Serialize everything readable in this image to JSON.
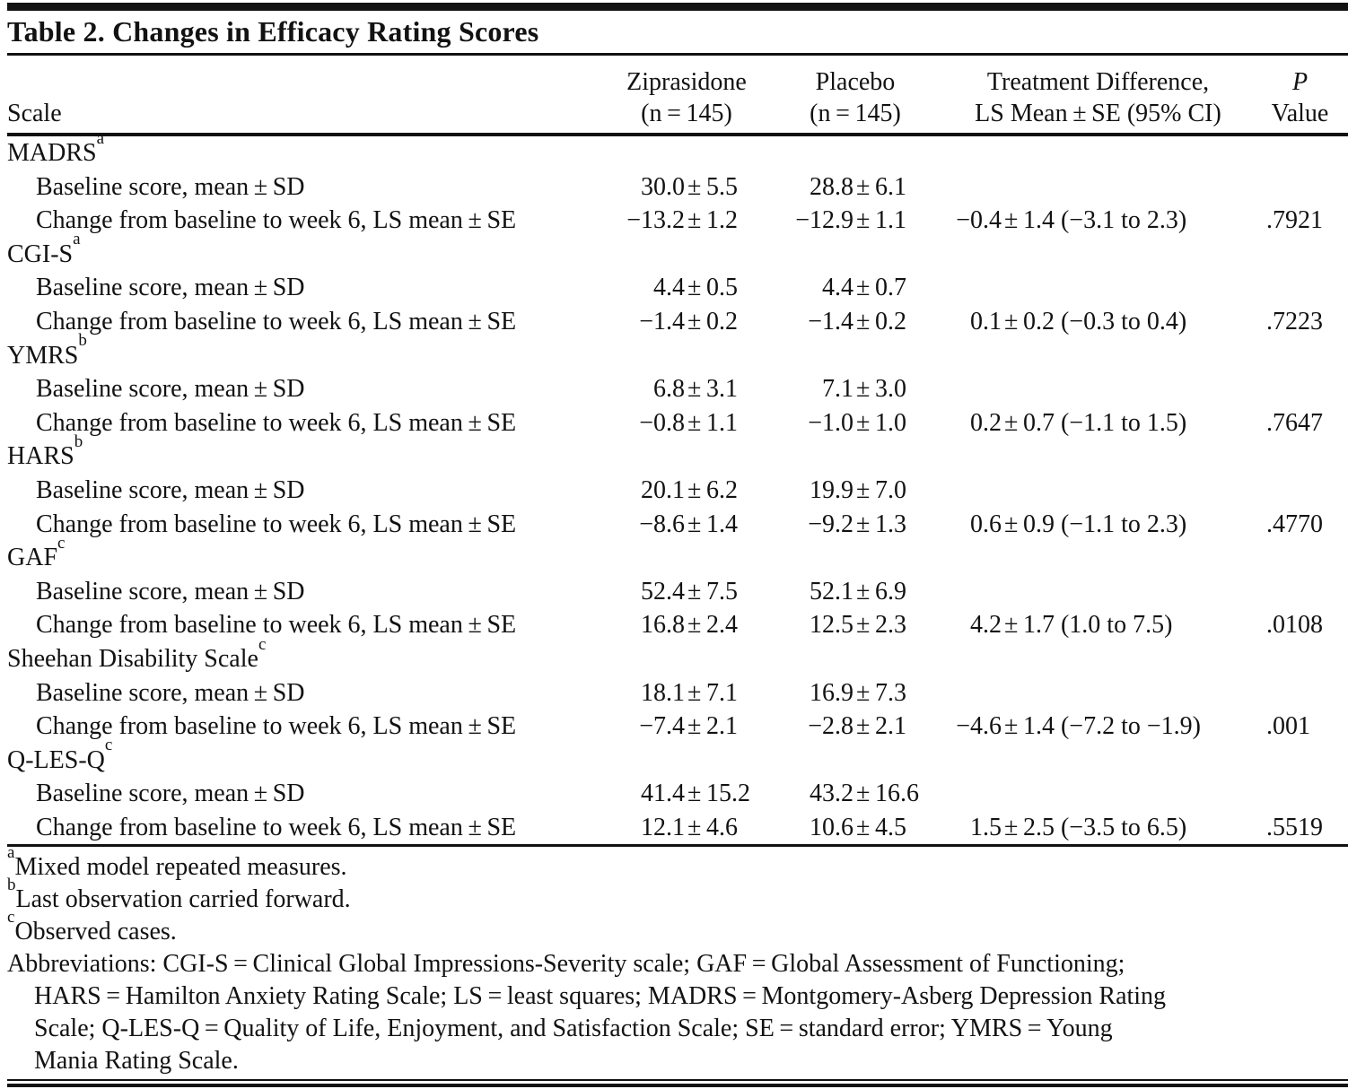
{
  "colors": {
    "ink": "#121212",
    "background": "#ffffff"
  },
  "table": {
    "title": "Table 2. Changes in Efficacy Rating Scores",
    "columns": {
      "scale": "Scale",
      "zip_line1": "Ziprasidone",
      "zip_line2": "(n = 145)",
      "pla_line1": "Placebo",
      "pla_line2": "(n = 145)",
      "diff_line1": "Treatment Difference,",
      "diff_line2": "LS Mean ± SE (95% CI)",
      "p_line1": "P",
      "p_line2": "Value"
    },
    "sections": [
      {
        "name": "MADRS",
        "sup": "a",
        "rows": [
          {
            "label": "Baseline score, mean ± SD",
            "zip_l": "30.0",
            "zip_r": "± 5.5",
            "pla_l": "28.8",
            "pla_r": "± 6.1",
            "diff_l": "",
            "diff_r": "",
            "p": ""
          },
          {
            "label": "Change from baseline to week 6, LS mean ± SE",
            "zip_l": "−13.2",
            "zip_r": "± 1.2",
            "pla_l": "−12.9",
            "pla_r": "± 1.1",
            "diff_l": "−0.4",
            "diff_r": "± 1.4 (−3.1 to 2.3)",
            "p": ".7921"
          }
        ]
      },
      {
        "name": "CGI-S",
        "sup": "a",
        "rows": [
          {
            "label": "Baseline score, mean ± SD",
            "zip_l": "4.4",
            "zip_r": "± 0.5",
            "pla_l": "4.4",
            "pla_r": "± 0.7",
            "diff_l": "",
            "diff_r": "",
            "p": ""
          },
          {
            "label": "Change from baseline to week 6, LS mean ± SE",
            "zip_l": "−1.4",
            "zip_r": "± 0.2",
            "pla_l": "−1.4",
            "pla_r": "± 0.2",
            "diff_l": "0.1",
            "diff_r": "± 0.2 (−0.3 to 0.4)",
            "p": ".7223"
          }
        ]
      },
      {
        "name": "YMRS",
        "sup": "b",
        "rows": [
          {
            "label": "Baseline score, mean ± SD",
            "zip_l": "6.8",
            "zip_r": "± 3.1",
            "pla_l": "7.1",
            "pla_r": "± 3.0",
            "diff_l": "",
            "diff_r": "",
            "p": ""
          },
          {
            "label": "Change from baseline to week 6, LS mean ± SE",
            "zip_l": "−0.8",
            "zip_r": "± 1.1",
            "pla_l": "−1.0",
            "pla_r": "± 1.0",
            "diff_l": "0.2",
            "diff_r": "± 0.7 (−1.1 to 1.5)",
            "p": ".7647"
          }
        ]
      },
      {
        "name": "HARS",
        "sup": "b",
        "rows": [
          {
            "label": "Baseline score, mean ± SD",
            "zip_l": "20.1",
            "zip_r": "± 6.2",
            "pla_l": "19.9",
            "pla_r": "± 7.0",
            "diff_l": "",
            "diff_r": "",
            "p": ""
          },
          {
            "label": "Change from baseline to week 6, LS mean ± SE",
            "zip_l": "−8.6",
            "zip_r": "± 1.4",
            "pla_l": "−9.2",
            "pla_r": "± 1.3",
            "diff_l": "0.6",
            "diff_r": "± 0.9 (−1.1 to 2.3)",
            "p": ".4770"
          }
        ]
      },
      {
        "name": "GAF",
        "sup": "c",
        "rows": [
          {
            "label": "Baseline score, mean ± SD",
            "zip_l": "52.4",
            "zip_r": "± 7.5",
            "pla_l": "52.1",
            "pla_r": "± 6.9",
            "diff_l": "",
            "diff_r": "",
            "p": ""
          },
          {
            "label": "Change from baseline to week 6, LS mean ± SE",
            "zip_l": "16.8",
            "zip_r": "± 2.4",
            "pla_l": "12.5",
            "pla_r": "± 2.3",
            "diff_l": "4.2",
            "diff_r": "± 1.7 (1.0 to 7.5)",
            "p": ".0108"
          }
        ]
      },
      {
        "name": "Sheehan Disability Scale",
        "sup": "c",
        "rows": [
          {
            "label": "Baseline score, mean ± SD",
            "zip_l": "18.1",
            "zip_r": "± 7.1",
            "pla_l": "16.9",
            "pla_r": "± 7.3",
            "diff_l": "",
            "diff_r": "",
            "p": ""
          },
          {
            "label": "Change from baseline to week 6, LS mean ± SE",
            "zip_l": "−7.4",
            "zip_r": "± 2.1",
            "pla_l": "−2.8",
            "pla_r": "± 2.1",
            "diff_l": "−4.6",
            "diff_r": "± 1.4 (−7.2 to −1.9)",
            "p": ".001"
          }
        ]
      },
      {
        "name": "Q-LES-Q",
        "sup": "c",
        "rows": [
          {
            "label": "Baseline score, mean ± SD",
            "zip_l": "41.4",
            "zip_r": "± 15.2",
            "pla_l": "43.2",
            "pla_r": "± 16.6",
            "diff_l": "",
            "diff_r": "",
            "p": ""
          },
          {
            "label": "Change from baseline to week 6, LS mean ± SE",
            "zip_l": "12.1",
            "zip_r": "± 4.6",
            "pla_l": "10.6",
            "pla_r": "± 4.5",
            "diff_l": "1.5",
            "diff_r": "± 2.5 (−3.5 to 6.5)",
            "p": ".5519"
          }
        ]
      }
    ],
    "footnotes": [
      {
        "sup": "a",
        "text": "Mixed model repeated measures."
      },
      {
        "sup": "b",
        "text": "Last observation carried forward."
      },
      {
        "sup": "c",
        "text": "Observed cases."
      }
    ],
    "abbreviation_lines": [
      "Abbreviations: CGI-S = Clinical Global Impressions-Severity scale; GAF = Global Assessment of Functioning;",
      "HARS = Hamilton Anxiety Rating Scale; LS = least squares; MADRS = Montgomery-Asberg Depression Rating",
      "Scale; Q-LES-Q = Quality of Life, Enjoyment, and Satisfaction Scale; SE = standard error; YMRS = Young",
      "Mania Rating Scale."
    ]
  }
}
